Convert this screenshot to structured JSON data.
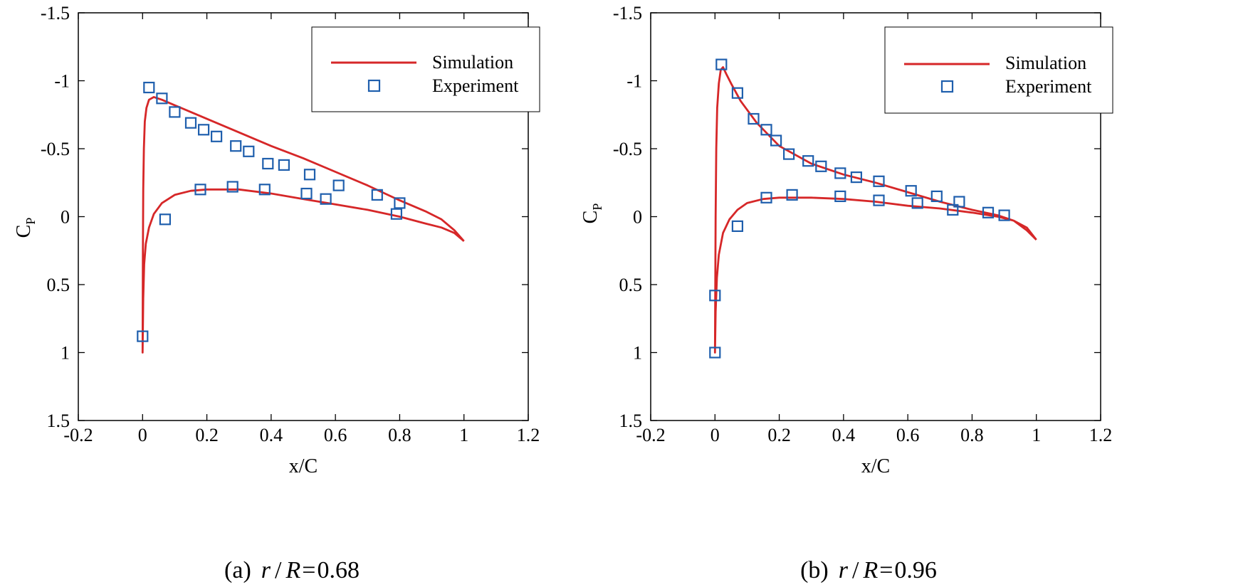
{
  "chart_data": [
    {
      "type": "line",
      "caption": {
        "prefix": "(a)",
        "r": "r",
        "slash": "/",
        "R": "R",
        "eq": "=",
        "value": "0.68"
      },
      "xlabel": "x/C",
      "ylabel": "C",
      "ylabel_sub": "P",
      "xlim": [
        -0.2,
        1.2
      ],
      "ylim": [
        1.5,
        -1.5
      ],
      "y_inverted": true,
      "xticks": [
        "-0.2",
        "0",
        "0.2",
        "0.4",
        "0.6",
        "0.8",
        "1",
        "1.2"
      ],
      "yticks": [
        "-1.5",
        "-1",
        "-0.5",
        "0",
        "0.5",
        "1",
        "1.5"
      ],
      "xtick_values": [
        -0.2,
        0,
        0.2,
        0.4,
        0.6,
        0.8,
        1.0,
        1.2
      ],
      "ytick_values": [
        -1.5,
        -1,
        -0.5,
        0,
        0.5,
        1,
        1.5
      ],
      "legend": {
        "position": "top-right",
        "entries": [
          "Simulation",
          "Experiment"
        ]
      },
      "series": [
        {
          "name": "Simulation",
          "style": "line",
          "color": "#d62728",
          "x": [
            1.0,
            0.97,
            0.93,
            0.88,
            0.8,
            0.7,
            0.6,
            0.5,
            0.4,
            0.3,
            0.22,
            0.15,
            0.1,
            0.06,
            0.035,
            0.02,
            0.012,
            0.007,
            0.004,
            0.002,
            0.001,
            0.0,
            0.002,
            0.005,
            0.01,
            0.02,
            0.035,
            0.06,
            0.1,
            0.15,
            0.2,
            0.3,
            0.4,
            0.5,
            0.6,
            0.7,
            0.8,
            0.88,
            0.93,
            0.97,
            1.0
          ],
          "y": [
            0.18,
            0.1,
            0.02,
            -0.04,
            -0.12,
            -0.23,
            -0.33,
            -0.43,
            -0.52,
            -0.62,
            -0.7,
            -0.77,
            -0.82,
            -0.86,
            -0.88,
            -0.86,
            -0.8,
            -0.7,
            -0.5,
            -0.2,
            0.3,
            1.0,
            0.6,
            0.35,
            0.2,
            0.08,
            -0.02,
            -0.1,
            -0.16,
            -0.19,
            -0.2,
            -0.2,
            -0.17,
            -0.13,
            -0.09,
            -0.05,
            0.0,
            0.05,
            0.08,
            0.12,
            0.18
          ]
        },
        {
          "name": "Experiment",
          "style": "marker",
          "color": "#1f5fad",
          "x": [
            0.02,
            0.06,
            0.1,
            0.15,
            0.19,
            0.23,
            0.29,
            0.33,
            0.39,
            0.44,
            0.52,
            0.61,
            0.73,
            0.8,
            0.0,
            0.07,
            0.18,
            0.28,
            0.38,
            0.51,
            0.57,
            0.79
          ],
          "y": [
            -0.95,
            -0.87,
            -0.77,
            -0.69,
            -0.64,
            -0.59,
            -0.52,
            -0.48,
            -0.39,
            -0.38,
            -0.31,
            -0.23,
            -0.16,
            -0.1,
            0.88,
            0.02,
            -0.2,
            -0.22,
            -0.2,
            -0.17,
            -0.13,
            -0.02
          ]
        }
      ]
    },
    {
      "type": "line",
      "caption": {
        "prefix": "(b)",
        "r": "r",
        "slash": "/",
        "R": "R",
        "eq": "=",
        "value": "0.96"
      },
      "xlabel": "x/C",
      "ylabel": "C",
      "ylabel_sub": "P",
      "xlim": [
        -0.2,
        1.2
      ],
      "ylim": [
        1.5,
        -1.5
      ],
      "y_inverted": true,
      "xticks": [
        "-0.2",
        "0",
        "0.2",
        "0.4",
        "0.6",
        "0.8",
        "1",
        "1.2"
      ],
      "yticks": [
        "-1.5",
        "-1",
        "-0.5",
        "0",
        "0.5",
        "1",
        "1.5"
      ],
      "xtick_values": [
        -0.2,
        0,
        0.2,
        0.4,
        0.6,
        0.8,
        1.0,
        1.2
      ],
      "ytick_values": [
        -1.5,
        -1,
        -0.5,
        0,
        0.5,
        1,
        1.5
      ],
      "legend": {
        "position": "top-right",
        "entries": [
          "Simulation",
          "Experiment"
        ]
      },
      "series": [
        {
          "name": "Simulation",
          "style": "line",
          "color": "#d62728",
          "x": [
            1.0,
            0.97,
            0.93,
            0.88,
            0.8,
            0.7,
            0.6,
            0.5,
            0.4,
            0.3,
            0.2,
            0.13,
            0.08,
            0.05,
            0.035,
            0.025,
            0.018,
            0.012,
            0.007,
            0.004,
            0.002,
            0.0,
            0.002,
            0.006,
            0.012,
            0.025,
            0.045,
            0.07,
            0.1,
            0.15,
            0.2,
            0.3,
            0.4,
            0.5,
            0.6,
            0.7,
            0.8,
            0.88,
            0.93,
            0.97,
            1.0
          ],
          "y": [
            0.17,
            0.1,
            0.03,
            -0.01,
            -0.05,
            -0.11,
            -0.18,
            -0.25,
            -0.31,
            -0.39,
            -0.52,
            -0.69,
            -0.85,
            -0.98,
            -1.05,
            -1.1,
            -1.08,
            -0.98,
            -0.8,
            -0.5,
            0.0,
            1.0,
            0.7,
            0.45,
            0.28,
            0.12,
            0.02,
            -0.05,
            -0.1,
            -0.13,
            -0.14,
            -0.14,
            -0.13,
            -0.11,
            -0.08,
            -0.06,
            -0.03,
            0.0,
            0.03,
            0.08,
            0.17
          ]
        },
        {
          "name": "Experiment",
          "style": "marker",
          "color": "#1f5fad",
          "x": [
            0.02,
            0.07,
            0.12,
            0.16,
            0.19,
            0.23,
            0.29,
            0.33,
            0.39,
            0.44,
            0.51,
            0.61,
            0.69,
            0.76,
            0.85,
            0.9,
            0.0,
            0.0,
            0.07,
            0.16,
            0.24,
            0.39,
            0.51,
            0.63,
            0.74
          ],
          "y": [
            -1.12,
            -0.91,
            -0.72,
            -0.64,
            -0.56,
            -0.46,
            -0.41,
            -0.37,
            -0.32,
            -0.29,
            -0.26,
            -0.19,
            -0.15,
            -0.11,
            -0.03,
            -0.01,
            1.0,
            0.58,
            0.07,
            -0.14,
            -0.16,
            -0.15,
            -0.12,
            -0.1,
            -0.05
          ]
        }
      ]
    }
  ]
}
